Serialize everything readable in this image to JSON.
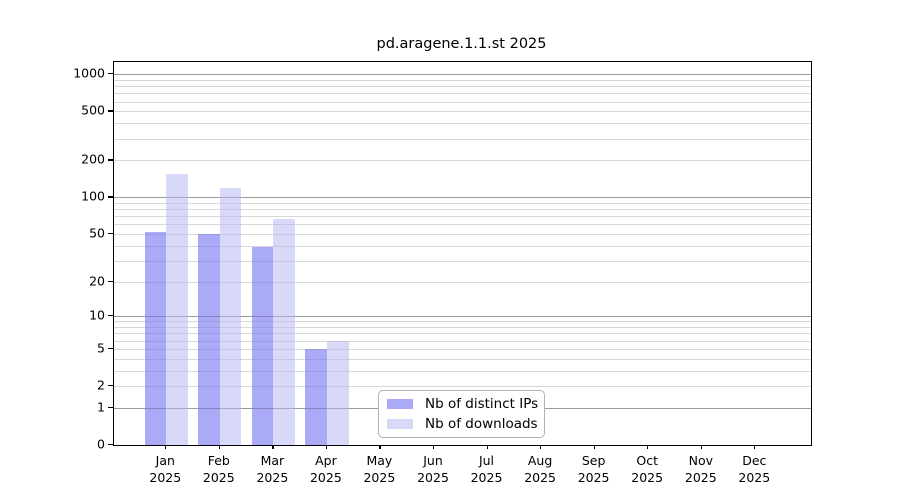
{
  "title": "pd.aragene.1.1.st 2025",
  "chart_data": {
    "type": "bar",
    "categories": [
      "Jan",
      "Feb",
      "Mar",
      "Apr",
      "May",
      "Jun",
      "Jul",
      "Aug",
      "Sep",
      "Oct",
      "Nov",
      "Dec"
    ],
    "year": "2025",
    "series": [
      {
        "name": "Nb of distinct IPs",
        "color": "#aaaaf7",
        "values": [
          52,
          50,
          39,
          5,
          0,
          0,
          0,
          0,
          0,
          0,
          0,
          0
        ]
      },
      {
        "name": "Nb of downloads",
        "color": "#d8d8f8",
        "values": [
          155,
          120,
          67,
          6,
          0,
          0,
          0,
          0,
          0,
          0,
          0,
          0
        ]
      }
    ],
    "y_ticks": [
      0,
      1,
      2,
      5,
      10,
      20,
      50,
      100,
      200,
      500,
      1000
    ],
    "y_scale": "log10(value+1)",
    "ylim": [
      0,
      1258
    ],
    "xlabel": "",
    "ylabel": "",
    "grid": "on",
    "legend_position": "bottom-center-inside"
  },
  "colors": {
    "major_grid": "#c7c7c7",
    "minor_grid": "#ebebeb",
    "axis": "#000000",
    "background": "#ffffff"
  }
}
